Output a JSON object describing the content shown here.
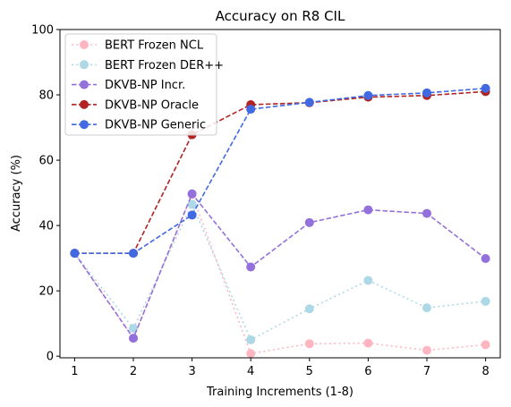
{
  "chart_data": {
    "type": "line",
    "title": "Accuracy on R8 CIL",
    "xlabel": "Training Increments (1-8)",
    "ylabel": "Accuracy (%)",
    "x": [
      1,
      2,
      3,
      4,
      5,
      6,
      7,
      8
    ],
    "xlim": [
      0.75,
      8.25
    ],
    "ylim": [
      0,
      100
    ],
    "yticks": [
      0,
      20,
      40,
      60,
      80,
      100
    ],
    "grid": false,
    "legend_position": "top-left",
    "series": [
      {
        "name": "BERT Frozen NCL",
        "color": "#ffb6c1",
        "linestyle": "dotted",
        "values": [
          31.5,
          5.5,
          49.5,
          0.8,
          3.8,
          4.0,
          1.8,
          3.5
        ]
      },
      {
        "name": "BERT Frozen DER++",
        "color": "#add8e6",
        "linestyle": "dotted",
        "values": [
          31.5,
          8.5,
          46.5,
          5.0,
          14.5,
          23.2,
          14.8,
          16.8
        ]
      },
      {
        "name": "DKVB-NP Incr.",
        "color": "#9370db",
        "linestyle": "dashed",
        "values": [
          31.5,
          5.5,
          49.7,
          27.3,
          40.9,
          44.8,
          43.7,
          29.9
        ]
      },
      {
        "name": "DKVB-NP Oracle",
        "color": "#b22222",
        "linestyle": "dashed",
        "values": [
          31.5,
          31.5,
          67.8,
          77.0,
          77.6,
          79.3,
          79.8,
          81.0
        ]
      },
      {
        "name": "DKVB-NP Generic",
        "color": "#4169e1",
        "linestyle": "dashed",
        "values": [
          31.5,
          31.5,
          43.2,
          75.6,
          77.7,
          79.8,
          80.6,
          82.0
        ]
      }
    ]
  }
}
